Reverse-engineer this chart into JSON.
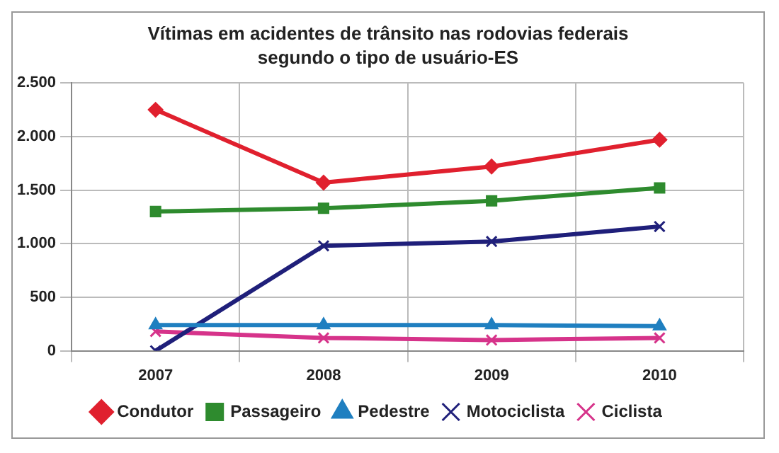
{
  "chart_data": {
    "type": "line",
    "title": "Vítimas em acidentes de trânsito nas rodovias federais segundo o tipo de usuário-ES",
    "categories": [
      "2007",
      "2008",
      "2009",
      "2010"
    ],
    "series": [
      {
        "name": "Condutor",
        "color": "#e0202e",
        "marker": "diamond",
        "values": [
          2250,
          1570,
          1720,
          1970
        ]
      },
      {
        "name": "Passageiro",
        "color": "#2e8b2e",
        "marker": "square",
        "values": [
          1300,
          1330,
          1400,
          1520
        ]
      },
      {
        "name": "Pedestre",
        "color": "#1f7fc0",
        "marker": "triangle",
        "values": [
          240,
          240,
          240,
          230
        ]
      },
      {
        "name": "Motociclista",
        "color": "#1f1f7a",
        "marker": "cross",
        "values": [
          0,
          980,
          1020,
          1160
        ]
      },
      {
        "name": "Ciclista",
        "color": "#d6338a",
        "marker": "cross",
        "values": [
          180,
          120,
          100,
          120
        ]
      }
    ],
    "ylim": [
      0,
      2500
    ],
    "yticks": [
      0,
      {
        "value": 500,
        "label": "500"
      },
      {
        "value": 1000,
        "label": "1.000"
      },
      {
        "value": 1500,
        "label": "1.500"
      },
      {
        "value": 2000,
        "label": "2.000"
      },
      {
        "value": 2500,
        "label": "2.500"
      }
    ],
    "grid": true,
    "legend": "bottom"
  }
}
